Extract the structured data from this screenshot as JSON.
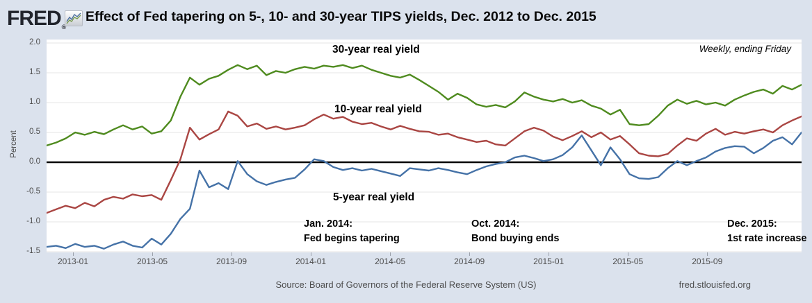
{
  "header": {
    "logo_text": "FRED",
    "registered_mark": "®",
    "title": "Effect of Fed tapering on 5-, 10- and 30-year TIPS yields, Dec. 2012 to Dec. 2015"
  },
  "colors": {
    "background": "#dbe2ed",
    "plot_background": "#ffffff",
    "gridline": "#e6e6e6",
    "zero_line": "#000000",
    "series_30yr": "#4f8b1f",
    "series_10yr": "#aa4643",
    "series_5yr": "#4572a7",
    "muted_text": "#4d4d4d"
  },
  "chart_data": {
    "type": "line",
    "title": "Effect of Fed tapering on 5-, 10- and 30-year TIPS yields, Dec. 2012 to Dec. 2015",
    "frequency_note": "Weekly, ending Friday",
    "ylabel": "Percent",
    "ylim": [
      -1.5,
      2.0
    ],
    "grid": true,
    "x_start": "2012-12",
    "x_end": "2015-12",
    "y_tick_labels": [
      "2.0",
      "1.5",
      "1.0",
      "0.5",
      "0.0",
      "-0.5",
      "-1.0",
      "-1.5"
    ],
    "x_tick_labels": [
      "2013-01",
      "2013-05",
      "2013-09",
      "2014-01",
      "2014-05",
      "2014-09",
      "2015-01",
      "2015-05",
      "2015-09"
    ],
    "series": [
      {
        "name": "30-year real yield",
        "color": "#4f8b1f",
        "values": [
          0.28,
          0.33,
          0.4,
          0.5,
          0.46,
          0.51,
          0.47,
          0.55,
          0.62,
          0.55,
          0.6,
          0.48,
          0.52,
          0.7,
          1.1,
          1.42,
          1.3,
          1.4,
          1.45,
          1.55,
          1.63,
          1.56,
          1.62,
          1.46,
          1.53,
          1.5,
          1.56,
          1.6,
          1.57,
          1.62,
          1.6,
          1.63,
          1.58,
          1.62,
          1.55,
          1.5,
          1.45,
          1.42,
          1.47,
          1.38,
          1.28,
          1.18,
          1.05,
          1.15,
          1.08,
          0.97,
          0.93,
          0.96,
          0.92,
          1.02,
          1.17,
          1.1,
          1.05,
          1.02,
          1.06,
          1.0,
          1.04,
          0.95,
          0.9,
          0.8,
          0.88,
          0.64,
          0.62,
          0.64,
          0.78,
          0.95,
          1.05,
          0.98,
          1.03,
          0.97,
          1.0,
          0.95,
          1.05,
          1.12,
          1.18,
          1.22,
          1.15,
          1.28,
          1.22,
          1.3
        ]
      },
      {
        "name": "10-year real yield",
        "color": "#aa4643",
        "values": [
          -0.85,
          -0.79,
          -0.73,
          -0.77,
          -0.68,
          -0.74,
          -0.63,
          -0.58,
          -0.61,
          -0.54,
          -0.57,
          -0.55,
          -0.63,
          -0.3,
          0.05,
          0.58,
          0.38,
          0.47,
          0.55,
          0.85,
          0.78,
          0.6,
          0.65,
          0.56,
          0.6,
          0.55,
          0.58,
          0.62,
          0.72,
          0.8,
          0.73,
          0.76,
          0.68,
          0.64,
          0.66,
          0.6,
          0.55,
          0.61,
          0.56,
          0.52,
          0.51,
          0.46,
          0.48,
          0.42,
          0.38,
          0.34,
          0.36,
          0.3,
          0.28,
          0.4,
          0.52,
          0.58,
          0.53,
          0.43,
          0.37,
          0.44,
          0.52,
          0.42,
          0.5,
          0.38,
          0.44,
          0.3,
          0.15,
          0.11,
          0.1,
          0.14,
          0.28,
          0.4,
          0.36,
          0.48,
          0.56,
          0.46,
          0.51,
          0.48,
          0.52,
          0.55,
          0.5,
          0.62,
          0.7,
          0.77
        ]
      },
      {
        "name": "5-year real yield",
        "color": "#4572a7",
        "values": [
          -1.42,
          -1.4,
          -1.44,
          -1.37,
          -1.42,
          -1.4,
          -1.45,
          -1.38,
          -1.33,
          -1.4,
          -1.43,
          -1.28,
          -1.38,
          -1.2,
          -0.95,
          -0.78,
          -0.14,
          -0.42,
          -0.35,
          -0.45,
          0.02,
          -0.2,
          -0.32,
          -0.38,
          -0.33,
          -0.29,
          -0.26,
          -0.12,
          0.05,
          0.02,
          -0.08,
          -0.13,
          -0.1,
          -0.14,
          -0.11,
          -0.15,
          -0.19,
          -0.23,
          -0.1,
          -0.12,
          -0.14,
          -0.1,
          -0.13,
          -0.17,
          -0.2,
          -0.13,
          -0.07,
          -0.03,
          0.0,
          0.08,
          0.11,
          0.07,
          0.02,
          0.05,
          0.12,
          0.25,
          0.45,
          0.2,
          -0.05,
          0.25,
          0.05,
          -0.2,
          -0.27,
          -0.28,
          -0.25,
          -0.1,
          0.02,
          -0.05,
          0.02,
          0.08,
          0.18,
          0.24,
          0.27,
          0.26,
          0.15,
          0.24,
          0.36,
          0.42,
          0.3,
          0.5
        ]
      }
    ],
    "annotations": [
      {
        "line1": "Jan. 2014:",
        "line2": "Fed begins tapering"
      },
      {
        "line1": "Oct. 2014:",
        "line2": "Bond buying ends"
      },
      {
        "line1": "Dec. 2015:",
        "line2": "1st rate increase"
      }
    ],
    "legend_position": "none"
  },
  "footer": {
    "source": "Source: Board of Governors of the Federal Reserve System (US)",
    "site": "fred.stlouisfed.org"
  }
}
